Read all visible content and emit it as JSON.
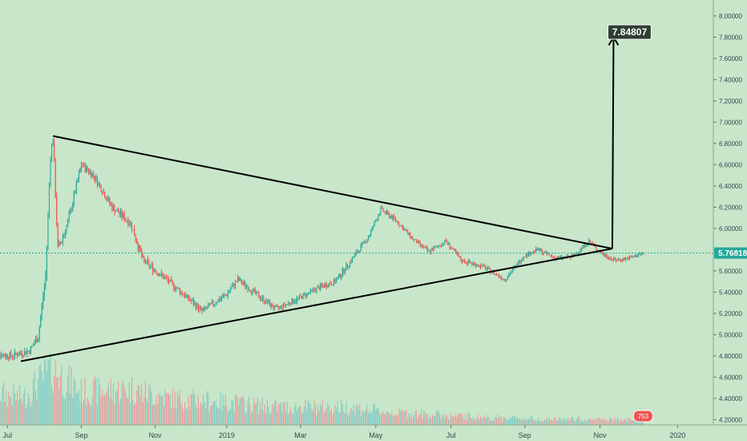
{
  "chart_data": {
    "type": "candlestick",
    "title": "",
    "colors": {
      "background": "#c8e6c9",
      "up": "#26a69a",
      "down": "#ef5350",
      "volume_up": "#80cbc4",
      "volume_down": "#ef9a9a",
      "pattern_lines": "#000000",
      "current_price_line": "#26a69a",
      "target_label_bg": "#2e4034",
      "target_label_text": "#ffffff"
    },
    "y_axis": {
      "side": "right",
      "range": [
        4.15,
        8.15
      ],
      "ticks": [
        "4.20000",
        "4.40000",
        "4.60000",
        "4.80000",
        "5.00000",
        "5.20000",
        "5.40000",
        "5.60000",
        "5.80000",
        "6.00000",
        "6.20000",
        "6.40000",
        "6.60000",
        "6.80000",
        "7.00000",
        "7.20000",
        "7.40000",
        "7.60000",
        "7.80000",
        "8.00000"
      ]
    },
    "x_axis": {
      "start": "2018-07-01",
      "end": "2020-01-31",
      "ticks": [
        {
          "label": "Jul",
          "date": "2018-07-07"
        },
        {
          "label": "Sep",
          "date": "2018-09-05"
        },
        {
          "label": "Nov",
          "date": "2018-11-04"
        },
        {
          "label": "2019",
          "date": "2019-01-01"
        },
        {
          "label": "Mar",
          "date": "2019-03-02"
        },
        {
          "label": "May",
          "date": "2019-05-02"
        },
        {
          "label": "Jul",
          "date": "2019-07-02"
        },
        {
          "label": "Sep",
          "date": "2019-08-31"
        },
        {
          "label": "Nov",
          "date": "2019-10-31"
        },
        {
          "label": "2020",
          "date": "2020-01-02"
        }
      ]
    },
    "price_path": [
      {
        "date": "2018-06-24",
        "price": 4.82
      },
      {
        "date": "2018-07-10",
        "price": 4.8
      },
      {
        "date": "2018-07-25",
        "price": 4.85
      },
      {
        "date": "2018-08-01",
        "price": 4.98
      },
      {
        "date": "2018-08-07",
        "price": 5.55
      },
      {
        "date": "2018-08-11",
        "price": 6.7
      },
      {
        "date": "2018-08-13",
        "price": 6.85
      },
      {
        "date": "2018-08-17",
        "price": 5.8
      },
      {
        "date": "2018-08-25",
        "price": 6.05
      },
      {
        "date": "2018-09-05",
        "price": 6.6
      },
      {
        "date": "2018-09-15",
        "price": 6.5
      },
      {
        "date": "2018-09-30",
        "price": 6.2
      },
      {
        "date": "2018-10-15",
        "price": 6.05
      },
      {
        "date": "2018-10-25",
        "price": 5.7
      },
      {
        "date": "2018-11-10",
        "price": 5.55
      },
      {
        "date": "2018-11-25",
        "price": 5.4
      },
      {
        "date": "2018-12-12",
        "price": 5.22
      },
      {
        "date": "2019-01-01",
        "price": 5.38
      },
      {
        "date": "2019-01-10",
        "price": 5.52
      },
      {
        "date": "2019-01-25",
        "price": 5.38
      },
      {
        "date": "2019-02-10",
        "price": 5.24
      },
      {
        "date": "2019-02-28",
        "price": 5.34
      },
      {
        "date": "2019-03-18",
        "price": 5.45
      },
      {
        "date": "2019-03-30",
        "price": 5.5
      },
      {
        "date": "2019-04-12",
        "price": 5.7
      },
      {
        "date": "2019-04-26",
        "price": 5.92
      },
      {
        "date": "2019-05-06",
        "price": 6.18
      },
      {
        "date": "2019-05-18",
        "price": 6.08
      },
      {
        "date": "2019-06-01",
        "price": 5.9
      },
      {
        "date": "2019-06-14",
        "price": 5.78
      },
      {
        "date": "2019-06-28",
        "price": 5.88
      },
      {
        "date": "2019-07-10",
        "price": 5.7
      },
      {
        "date": "2019-07-28",
        "price": 5.64
      },
      {
        "date": "2019-08-15",
        "price": 5.52
      },
      {
        "date": "2019-08-30",
        "price": 5.74
      },
      {
        "date": "2019-09-10",
        "price": 5.8
      },
      {
        "date": "2019-09-25",
        "price": 5.72
      },
      {
        "date": "2019-10-08",
        "price": 5.73
      },
      {
        "date": "2019-10-22",
        "price": 5.88
      },
      {
        "date": "2019-11-02",
        "price": 5.76
      },
      {
        "date": "2019-11-12",
        "price": 5.7
      },
      {
        "date": "2019-11-24",
        "price": 5.72
      },
      {
        "date": "2019-12-05",
        "price": 5.77
      }
    ],
    "volume_profile": [
      {
        "date": "2018-06-24",
        "volume": 0.55
      },
      {
        "date": "2018-07-20",
        "volume": 0.45
      },
      {
        "date": "2018-08-12",
        "volume": 0.95
      },
      {
        "date": "2018-09-05",
        "volume": 0.55
      },
      {
        "date": "2018-10-15",
        "volume": 0.6
      },
      {
        "date": "2018-11-15",
        "volume": 0.45
      },
      {
        "date": "2018-12-20",
        "volume": 0.4
      },
      {
        "date": "2019-02-15",
        "volume": 0.3
      },
      {
        "date": "2019-04-10",
        "volume": 0.3
      },
      {
        "date": "2019-05-10",
        "volume": 0.22
      },
      {
        "date": "2019-07-15",
        "volume": 0.14
      },
      {
        "date": "2019-09-15",
        "volume": 0.1
      },
      {
        "date": "2019-12-05",
        "volume": 0.09
      }
    ],
    "volume_badge": {
      "label": "753",
      "date": "2019-12-05"
    },
    "pattern": {
      "type": "symmetrical-triangle",
      "upper_line": [
        {
          "date": "2018-08-13",
          "price": 6.87
        },
        {
          "date": "2019-11-10",
          "price": 5.81
        }
      ],
      "lower_line": [
        {
          "date": "2018-07-18",
          "price": 4.75
        },
        {
          "date": "2019-11-10",
          "price": 5.81
        }
      ]
    },
    "target_arrow": {
      "from": {
        "date": "2019-11-10",
        "price": 5.81
      },
      "to": {
        "date": "2019-11-11",
        "price": 7.8
      }
    },
    "target_label": {
      "text": "7.84807",
      "date": "2019-11-24",
      "price": 7.84807
    },
    "current_price": {
      "value": 5.76818,
      "label": "5.76818"
    }
  }
}
